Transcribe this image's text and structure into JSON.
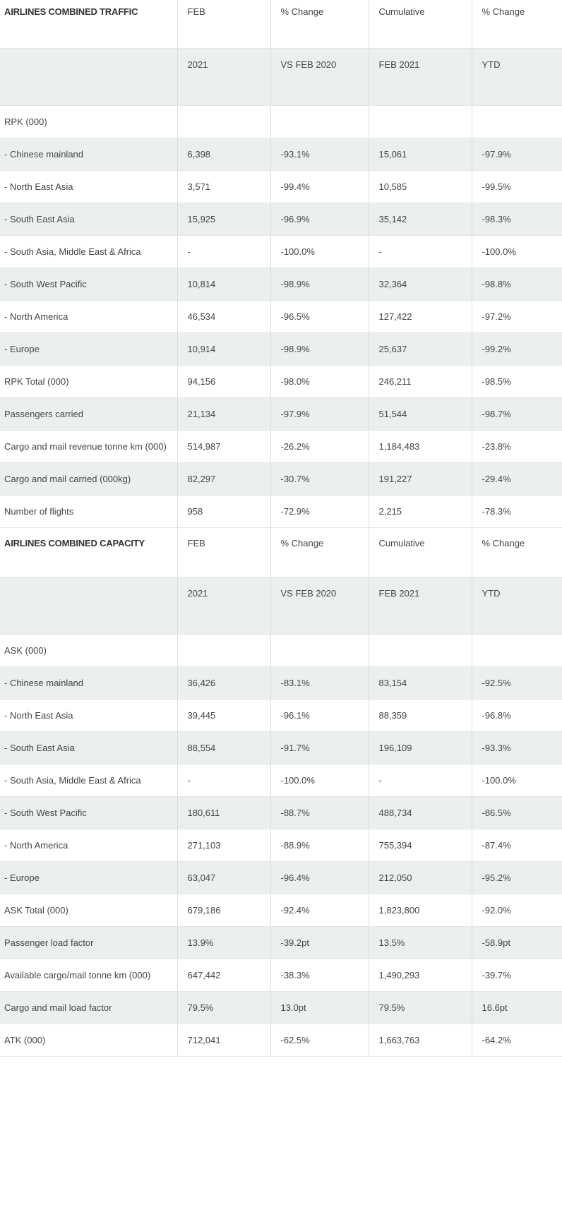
{
  "traffic": {
    "header": [
      "AIRLINES COMBINED TRAFFIC",
      "FEB",
      "% Change",
      "Cumulative",
      "% Change"
    ],
    "subheader": [
      "",
      "2021",
      "VS FEB 2020",
      "FEB 2021",
      "YTD"
    ],
    "rows": [
      [
        "RPK (000)",
        "",
        "",
        "",
        ""
      ],
      [
        " - Chinese mainland",
        "6,398",
        "-93.1%",
        "15,061",
        "-97.9%"
      ],
      [
        " - North East Asia",
        "3,571",
        "-99.4%",
        "10,585",
        "-99.5%"
      ],
      [
        " - South East Asia",
        "15,925",
        "-96.9%",
        "35,142",
        "-98.3%"
      ],
      [
        "- South Asia, Middle East  & Africa",
        "-",
        "-100.0%",
        "-",
        "-100.0%"
      ],
      [
        " - South West Pacific",
        "10,814",
        "-98.9%",
        "32,364",
        "-98.8%"
      ],
      [
        " - North America",
        "46,534",
        "-96.5%",
        "127,422",
        "-97.2%"
      ],
      [
        " - Europe",
        "10,914",
        "-98.9%",
        "25,637",
        "-99.2%"
      ],
      [
        "RPK Total (000)",
        "94,156",
        "-98.0%",
        "246,211",
        "-98.5%"
      ],
      [
        "Passengers carried",
        "21,134",
        "-97.9%",
        "51,544",
        "-98.7%"
      ],
      [
        "Cargo and mail revenue tonne km (000)",
        "514,987",
        "-26.2%",
        "1,184,483",
        "-23.8%"
      ],
      [
        "Cargo and mail carried (000kg)",
        "82,297",
        "-30.7%",
        "191,227",
        "-29.4%"
      ],
      [
        "Number of flights",
        "958",
        "-72.9%",
        "2,215",
        "-78.3%"
      ]
    ]
  },
  "capacity": {
    "header": [
      "AIRLINES COMBINED CAPACITY",
      "FEB",
      "% Change",
      "Cumulative",
      "% Change"
    ],
    "subheader": [
      "",
      "2021",
      "VS FEB 2020",
      "FEB 2021",
      "YTD"
    ],
    "rows": [
      [
        "ASK (000)",
        "",
        "",
        "",
        ""
      ],
      [
        " - Chinese mainland",
        "36,426",
        "-83.1%",
        "83,154",
        "-92.5%"
      ],
      [
        " - North East Asia",
        "39,445",
        "-96.1%",
        "88,359",
        "-96.8%"
      ],
      [
        " - South East Asia",
        "88,554",
        "-91.7%",
        "196,109",
        "-93.3%"
      ],
      [
        "- South Asia, Middle East  & Africa",
        "-",
        "-100.0%",
        "-",
        "-100.0%"
      ],
      [
        " - South West Pacific",
        "180,611",
        "-88.7%",
        "488,734",
        "-86.5%"
      ],
      [
        " - North America",
        "271,103",
        "-88.9%",
        "755,394",
        "-87.4%"
      ],
      [
        " - Europe",
        "63,047",
        "-96.4%",
        "212,050",
        "-95.2%"
      ],
      [
        "ASK Total (000)",
        "679,186",
        "-92.4%",
        "1,823,800",
        "-92.0%"
      ],
      [
        "Passenger load factor",
        "13.9%",
        "-39.2pt",
        "13.5%",
        "-58.9pt"
      ],
      [
        "Available cargo/mail tonne km (000)",
        "647,442",
        "-38.3%",
        "1,490,293",
        "-39.7%"
      ],
      [
        "Cargo and mail load factor",
        "79.5%",
        "13.0pt",
        "79.5%",
        "16.6pt"
      ],
      [
        "ATK (000)",
        "712,041",
        "-62.5%",
        "1,663,763",
        "-64.2%"
      ]
    ]
  }
}
